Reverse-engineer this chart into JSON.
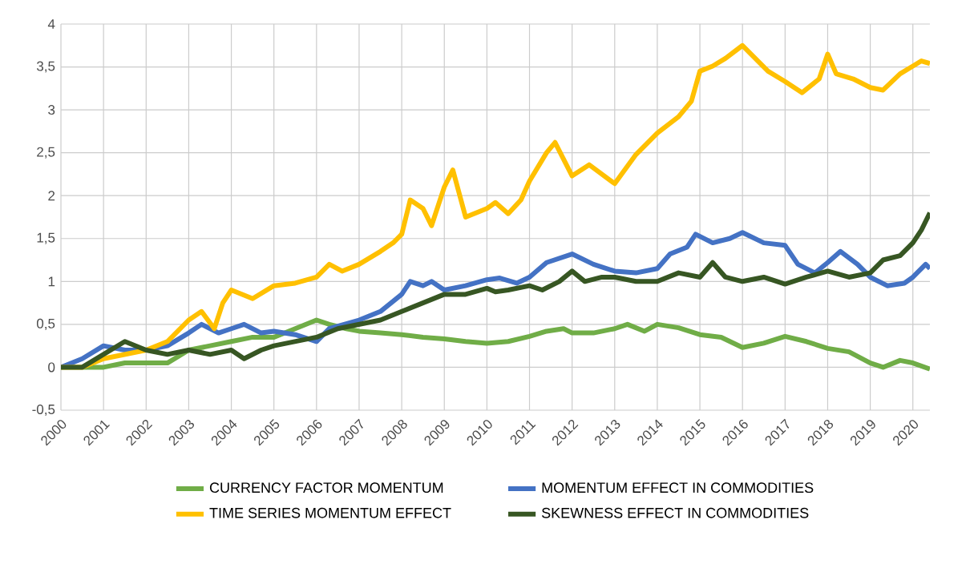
{
  "chart_data": {
    "type": "line",
    "xlim": [
      2000,
      2020.4
    ],
    "xticks": [
      2000,
      2001,
      2002,
      2003,
      2004,
      2005,
      2006,
      2007,
      2008,
      2009,
      2010,
      2011,
      2012,
      2013,
      2014,
      2015,
      2016,
      2017,
      2018,
      2019,
      2020
    ],
    "ylim": [
      -0.5,
      4
    ],
    "yticks": [
      {
        "value": -0.5,
        "label": "-0,5"
      },
      0,
      {
        "value": 0.5,
        "label": "0,5"
      },
      1,
      {
        "value": 1.5,
        "label": "1,5"
      },
      2,
      {
        "value": 2.5,
        "label": "2,5"
      },
      3,
      {
        "value": 3.5,
        "label": "3,5"
      },
      4
    ],
    "grid": true,
    "legend": "bottom",
    "series": [
      {
        "name": "CURRENCY FACTOR MOMENTUM",
        "color": "#70ad47",
        "x": [
          2000,
          2000.5,
          2001,
          2001.5,
          2002,
          2002.5,
          2003,
          2003.5,
          2004,
          2004.5,
          2005,
          2005.5,
          2006,
          2006.3,
          2006.7,
          2007,
          2007.5,
          2008,
          2008.5,
          2009,
          2009.5,
          2010,
          2010.5,
          2011,
          2011.4,
          2011.8,
          2012,
          2012.5,
          2013,
          2013.3,
          2013.7,
          2014,
          2014.5,
          2015,
          2015.5,
          2016,
          2016.5,
          2017,
          2017.5,
          2018,
          2018.5,
          2019,
          2019.3,
          2019.7,
          2020,
          2020.4
        ],
        "values": [
          0,
          0,
          0,
          0.05,
          0.05,
          0.05,
          0.2,
          0.25,
          0.3,
          0.35,
          0.35,
          0.45,
          0.55,
          0.5,
          0.45,
          0.42,
          0.4,
          0.38,
          0.35,
          0.33,
          0.3,
          0.28,
          0.3,
          0.36,
          0.42,
          0.45,
          0.4,
          0.4,
          0.45,
          0.5,
          0.42,
          0.5,
          0.46,
          0.38,
          0.35,
          0.23,
          0.28,
          0.36,
          0.3,
          0.22,
          0.18,
          0.05,
          0,
          0.08,
          0.05,
          -0.02
        ]
      },
      {
        "name": "MOMENTUM EFFECT IN COMMODITIES",
        "color": "#4472c4",
        "x": [
          2000,
          2000.5,
          2001,
          2001.5,
          2002,
          2002.5,
          2003,
          2003.3,
          2003.7,
          2004,
          2004.3,
          2004.7,
          2005,
          2005.5,
          2006,
          2006.3,
          2007,
          2007.5,
          2008,
          2008.2,
          2008.5,
          2008.7,
          2009,
          2009.5,
          2010,
          2010.3,
          2010.7,
          2011,
          2011.4,
          2012,
          2012.5,
          2013,
          2013.5,
          2014,
          2014.3,
          2014.7,
          2014.9,
          2015.3,
          2015.7,
          2016,
          2016.5,
          2017,
          2017.3,
          2017.7,
          2018,
          2018.3,
          2018.7,
          2019,
          2019.4,
          2019.8,
          2020,
          2020.3,
          2020.4
        ],
        "values": [
          0,
          0.1,
          0.25,
          0.2,
          0.2,
          0.25,
          0.4,
          0.5,
          0.4,
          0.45,
          0.5,
          0.4,
          0.42,
          0.38,
          0.3,
          0.45,
          0.55,
          0.65,
          0.85,
          1.0,
          0.95,
          1.0,
          0.9,
          0.95,
          1.02,
          1.04,
          0.98,
          1.05,
          1.22,
          1.32,
          1.2,
          1.12,
          1.1,
          1.15,
          1.32,
          1.4,
          1.55,
          1.45,
          1.5,
          1.57,
          1.45,
          1.42,
          1.2,
          1.1,
          1.22,
          1.35,
          1.2,
          1.05,
          0.95,
          0.98,
          1.05,
          1.2,
          1.15
        ]
      },
      {
        "name": "TIME SERIES MOMENTUM EFFECT",
        "color": "#ffc000",
        "x": [
          2000,
          2000.5,
          2001,
          2001.5,
          2002,
          2002.5,
          2003,
          2003.3,
          2003.6,
          2003.8,
          2004,
          2004.5,
          2005,
          2005.5,
          2006,
          2006.3,
          2006.6,
          2007,
          2007.5,
          2007.8,
          2008,
          2008.2,
          2008.5,
          2008.7,
          2009,
          2009.2,
          2009.5,
          2010,
          2010.2,
          2010.5,
          2010.8,
          2011,
          2011.4,
          2011.6,
          2012,
          2012.4,
          2013,
          2013.5,
          2014,
          2014.5,
          2014.8,
          2015,
          2015.3,
          2015.6,
          2016,
          2016.3,
          2016.6,
          2017,
          2017.4,
          2017.8,
          2018,
          2018.2,
          2018.6,
          2019,
          2019.3,
          2019.7,
          2020,
          2020.2,
          2020.4
        ],
        "values": [
          0,
          0,
          0.1,
          0.15,
          0.2,
          0.3,
          0.55,
          0.65,
          0.45,
          0.75,
          0.9,
          0.8,
          0.95,
          0.98,
          1.05,
          1.2,
          1.12,
          1.2,
          1.35,
          1.45,
          1.55,
          1.95,
          1.85,
          1.65,
          2.1,
          2.3,
          1.75,
          1.85,
          1.92,
          1.79,
          1.95,
          2.17,
          2.5,
          2.62,
          2.23,
          2.36,
          2.14,
          2.48,
          2.73,
          2.92,
          3.1,
          3.45,
          3.51,
          3.6,
          3.75,
          3.6,
          3.45,
          3.33,
          3.2,
          3.36,
          3.65,
          3.42,
          3.36,
          3.26,
          3.23,
          3.42,
          3.51,
          3.57,
          3.54
        ]
      },
      {
        "name": "SKEWNESS EFFECT IN COMMODITIES",
        "color": "#375623",
        "x": [
          2000,
          2000.5,
          2001,
          2001.5,
          2002,
          2002.5,
          2003,
          2003.5,
          2004,
          2004.3,
          2004.7,
          2005,
          2005.5,
          2006,
          2006.5,
          2007,
          2007.5,
          2008,
          2008.5,
          2009,
          2009.5,
          2010,
          2010.2,
          2010.5,
          2011,
          2011.3,
          2011.7,
          2012,
          2012.3,
          2012.7,
          2013,
          2013.5,
          2014,
          2014.5,
          2015,
          2015.3,
          2015.6,
          2016,
          2016.5,
          2017,
          2017.5,
          2018,
          2018.5,
          2019,
          2019.3,
          2019.7,
          2020,
          2020.2,
          2020.4
        ],
        "values": [
          0,
          0,
          0.15,
          0.3,
          0.2,
          0.15,
          0.2,
          0.15,
          0.2,
          0.1,
          0.2,
          0.25,
          0.3,
          0.35,
          0.45,
          0.5,
          0.55,
          0.65,
          0.75,
          0.85,
          0.85,
          0.92,
          0.88,
          0.9,
          0.95,
          0.9,
          1.0,
          1.12,
          1.0,
          1.05,
          1.05,
          1.0,
          1.0,
          1.1,
          1.05,
          1.22,
          1.05,
          1.0,
          1.05,
          0.97,
          1.05,
          1.12,
          1.05,
          1.1,
          1.25,
          1.3,
          1.45,
          1.6,
          1.8
        ]
      }
    ]
  }
}
